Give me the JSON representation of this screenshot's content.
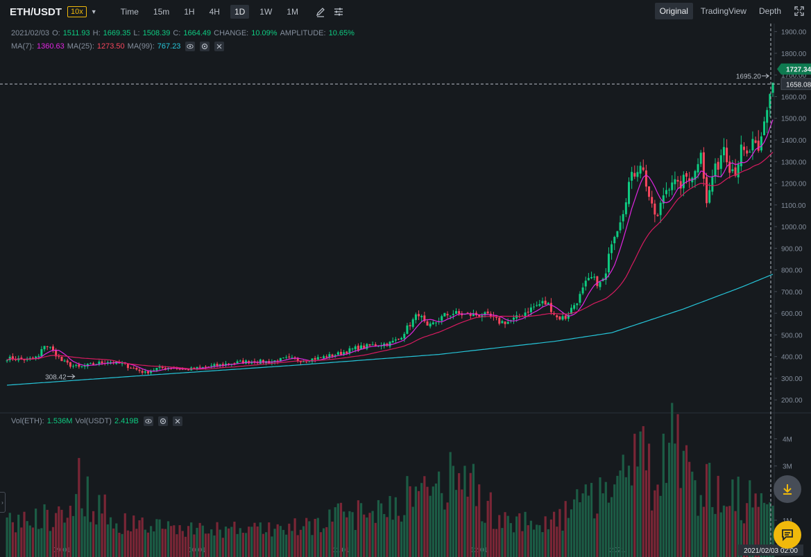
{
  "header": {
    "pair": "ETH/USDT",
    "leverage": "10x",
    "timeframes": [
      "Time",
      "15m",
      "1H",
      "4H",
      "1D",
      "1W",
      "1M"
    ],
    "active_timeframe": "1D",
    "tabs": [
      "Original",
      "TradingView",
      "Depth"
    ],
    "active_tab": "Original"
  },
  "ohlc": {
    "date": "2021/02/03",
    "o_label": "O:",
    "o": "1511.93",
    "h_label": "H:",
    "h": "1669.35",
    "l_label": "L:",
    "l": "1508.39",
    "c_label": "C:",
    "c": "1664.49",
    "change_label": "CHANGE:",
    "change": "10.09%",
    "amplitude_label": "AMPLITUDE:",
    "amplitude": "10.65%"
  },
  "ma": {
    "ma7_label": "MA(7):",
    "ma7": "1360.63",
    "ma25_label": "MA(25):",
    "ma25": "1273.50",
    "ma99_label": "MA(99):",
    "ma99": "767.23"
  },
  "volume": {
    "eth_label": "Vol(ETH):",
    "eth": "1.536M",
    "usdt_label": "Vol(USDT)",
    "usdt": "2.419B"
  },
  "annotations": {
    "high_marker": "1695.20",
    "low_marker": "308.42",
    "last_price": "1727.34",
    "crosshair_price": "1658.08",
    "crosshair_time": "2021/02/03 02:00"
  },
  "colors": {
    "up": "#0ecb81",
    "down": "#f6465d",
    "ma7": "#e026e0",
    "ma25": "#d81b60",
    "ma99": "#26c6da",
    "accent": "#f0b90b"
  },
  "chart_data": {
    "type": "candlestick",
    "x_tick_labels": [
      "09/01",
      "10/01",
      "11/01",
      "12/01",
      "2021",
      "2021/02/03 02:00"
    ],
    "price_ticks": [
      "1900.00",
      "1800.00",
      "1700.00",
      "1600.00",
      "1500.00",
      "1400.00",
      "1300.00",
      "1200.00",
      "1100.00",
      "1000.00",
      "900.00",
      "800.00",
      "700.00",
      "600.00",
      "500.00",
      "400.00",
      "300.00",
      "200.00"
    ],
    "volume_ticks": [
      "4M",
      "3M",
      "2M",
      "1M"
    ],
    "ylim": [
      140,
      1950
    ],
    "volume_max": 4600000,
    "close_anchors": [
      [
        0,
        392
      ],
      [
        7,
        385
      ],
      [
        11,
        400
      ],
      [
        13,
        455
      ],
      [
        15,
        440
      ],
      [
        19,
        380
      ],
      [
        22,
        360
      ],
      [
        25,
        350
      ],
      [
        30,
        365
      ],
      [
        35,
        378
      ],
      [
        40,
        365
      ],
      [
        45,
        340
      ],
      [
        48,
        325
      ],
      [
        52,
        345
      ],
      [
        57,
        350
      ],
      [
        62,
        340
      ],
      [
        66,
        345
      ],
      [
        71,
        355
      ],
      [
        78,
        370
      ],
      [
        85,
        378
      ],
      [
        91,
        376
      ],
      [
        97,
        390
      ],
      [
        103,
        382
      ],
      [
        109,
        395
      ],
      [
        115,
        412
      ],
      [
        121,
        438
      ],
      [
        127,
        452
      ],
      [
        133,
        462
      ],
      [
        136,
        480
      ],
      [
        140,
        550
      ],
      [
        143,
        600
      ],
      [
        146,
        530
      ],
      [
        149,
        560
      ],
      [
        152,
        590
      ],
      [
        155,
        600
      ],
      [
        158,
        595
      ],
      [
        162,
        592
      ],
      [
        165,
        595
      ],
      [
        168,
        580
      ],
      [
        171,
        560
      ],
      [
        174,
        560
      ],
      [
        177,
        578
      ],
      [
        180,
        605
      ],
      [
        183,
        630
      ],
      [
        186,
        648
      ],
      [
        188,
        640
      ],
      [
        191,
        580
      ],
      [
        194,
        580
      ],
      [
        196,
        620
      ],
      [
        199,
        680
      ],
      [
        201,
        735
      ],
      [
        203,
        760
      ],
      [
        206,
        735
      ],
      [
        208,
        775
      ],
      [
        210,
        940
      ],
      [
        212,
        1000
      ],
      [
        214,
        1080
      ],
      [
        216,
        1200
      ],
      [
        218,
        1250
      ],
      [
        220,
        1300
      ],
      [
        222,
        1200
      ],
      [
        224,
        1080
      ],
      [
        226,
        1040
      ],
      [
        228,
        1150
      ],
      [
        231,
        1220
      ],
      [
        233,
        1180
      ],
      [
        236,
        1230
      ],
      [
        239,
        1250
      ],
      [
        241,
        1370
      ],
      [
        243,
        1100
      ],
      [
        245,
        1230
      ],
      [
        247,
        1290
      ],
      [
        249,
        1380
      ],
      [
        251,
        1280
      ],
      [
        253,
        1260
      ],
      [
        255,
        1350
      ],
      [
        257,
        1320
      ],
      [
        259,
        1380
      ],
      [
        261,
        1330
      ],
      [
        263,
        1480
      ],
      [
        265,
        1620
      ],
      [
        266,
        1664
      ]
    ],
    "candle_count": 267,
    "ma99_anchors": [
      [
        0,
        268
      ],
      [
        50,
        315
      ],
      [
        100,
        360
      ],
      [
        150,
        410
      ],
      [
        190,
        470
      ],
      [
        210,
        510
      ],
      [
        235,
        620
      ],
      [
        255,
        720
      ],
      [
        266,
        780
      ]
    ],
    "volume_peaks": [
      [
        0,
        1.0
      ],
      [
        20,
        1.4
      ],
      [
        25,
        2.6
      ],
      [
        30,
        1.8
      ],
      [
        40,
        1.0
      ],
      [
        70,
        0.7
      ],
      [
        100,
        0.8
      ],
      [
        125,
        1.5
      ],
      [
        150,
        2.5
      ],
      [
        160,
        2.9
      ],
      [
        170,
        1.2
      ],
      [
        190,
        1.0
      ],
      [
        213,
        3.0
      ],
      [
        218,
        4.3
      ],
      [
        225,
        2.5
      ],
      [
        231,
        4.0
      ],
      [
        240,
        2.5
      ],
      [
        255,
        2.0
      ],
      [
        266,
        1.536
      ]
    ]
  }
}
